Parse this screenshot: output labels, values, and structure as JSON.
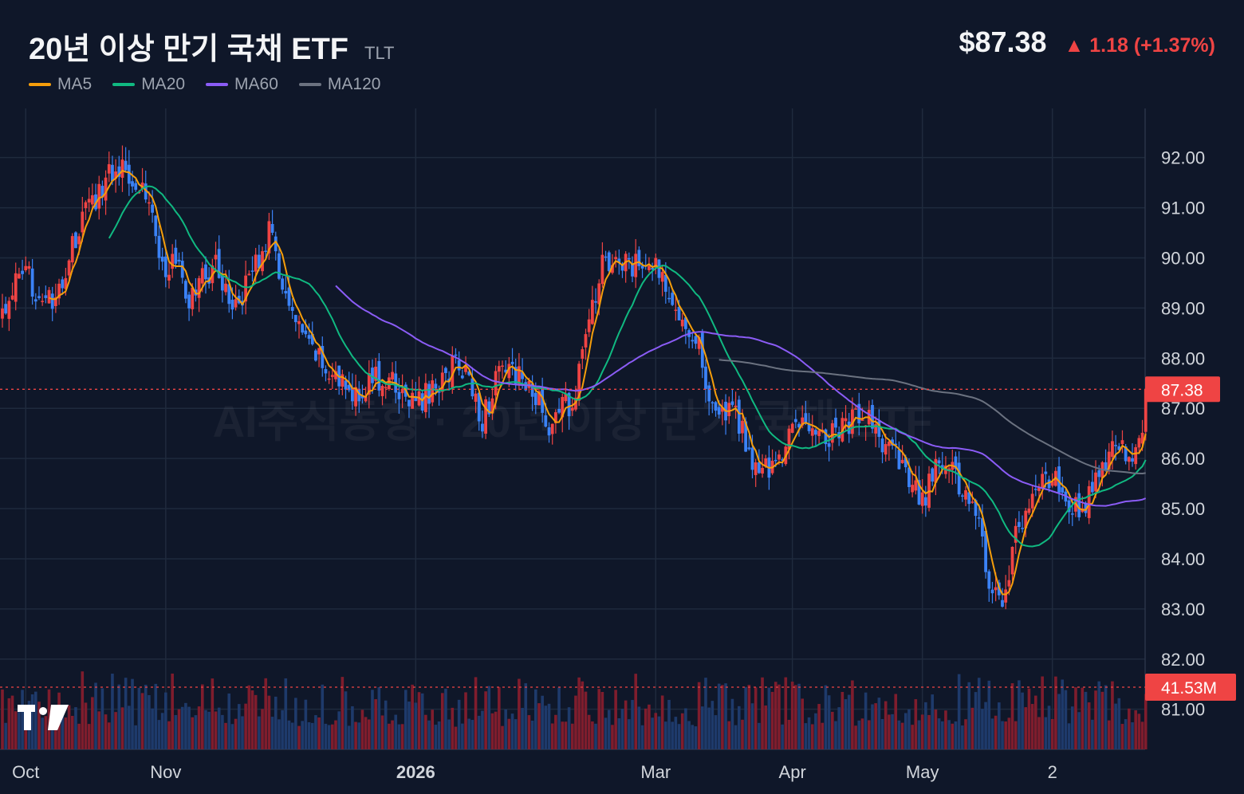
{
  "header": {
    "title": "20년 이상 만기 국채 ETF",
    "ticker": "TLT",
    "price": "$87.38",
    "change": "▲ 1.18 (+1.37%)"
  },
  "watermark": "AI주식동향 · 20년 이상 만기 국채 ETF",
  "colors": {
    "background": "#0f1729",
    "grid": "#1f2a3d",
    "up": "#ef4444",
    "down": "#3b82f6",
    "vol_up": "#7f1d2d",
    "vol_down": "#1e3a6b",
    "ma5": "#f59e0b",
    "ma20": "#10b981",
    "ma60": "#8b5cf6",
    "ma120": "#6b7280",
    "price_line": "#ef4444"
  },
  "chart_data": {
    "type": "candlestick",
    "y_axis": {
      "min": 80.2,
      "max": 92.98,
      "ticks": [
        81,
        82,
        83,
        84,
        85,
        86,
        87,
        88,
        89,
        90,
        91,
        92
      ],
      "tick_labels": [
        "81.00",
        "82.00",
        "83.00",
        "84.00",
        "85.00",
        "86.00",
        "87.00",
        "88.00",
        "89.00",
        "90.00",
        "91.00",
        "92.00"
      ]
    },
    "x_axis": {
      "labels": [
        {
          "text": "Oct",
          "bold": false,
          "index": 7
        },
        {
          "text": "Nov",
          "bold": false,
          "index": 49
        },
        {
          "text": "2026",
          "bold": true,
          "index": 124
        },
        {
          "text": "Mar",
          "bold": false,
          "index": 196
        },
        {
          "text": "Apr",
          "bold": false,
          "index": 237
        },
        {
          "text": "May",
          "bold": false,
          "index": 276
        },
        {
          "text": "2",
          "bold": false,
          "index": 315
        }
      ]
    },
    "current_price": 87.38,
    "current_price_label": "87.38",
    "current_volume_label": "41.53M",
    "legend": [
      {
        "name": "MA5",
        "color": "#f59e0b"
      },
      {
        "name": "MA20",
        "color": "#10b981"
      },
      {
        "name": "MA60",
        "color": "#8b5cf6"
      },
      {
        "name": "MA120",
        "color": "#6b7280"
      }
    ],
    "anchors": [
      [
        0,
        88.9
      ],
      [
        4,
        89.5
      ],
      [
        8,
        89.6
      ],
      [
        12,
        89.2
      ],
      [
        16,
        89.0
      ],
      [
        20,
        90.0
      ],
      [
        24,
        90.8
      ],
      [
        28,
        91.2
      ],
      [
        32,
        91.7
      ],
      [
        36,
        91.85
      ],
      [
        40,
        91.6
      ],
      [
        44,
        91.2
      ],
      [
        48,
        89.8
      ],
      [
        52,
        89.9
      ],
      [
        56,
        89.1
      ],
      [
        60,
        89.6
      ],
      [
        64,
        89.9
      ],
      [
        68,
        89.1
      ],
      [
        72,
        89.3
      ],
      [
        76,
        89.9
      ],
      [
        80,
        90.5
      ],
      [
        84,
        89.5
      ],
      [
        88,
        88.6
      ],
      [
        92,
        88.2
      ],
      [
        96,
        87.9
      ],
      [
        100,
        87.6
      ],
      [
        104,
        87.3
      ],
      [
        108,
        87.4
      ],
      [
        112,
        87.6
      ],
      [
        116,
        87.5
      ],
      [
        120,
        87.3
      ],
      [
        124,
        87.1
      ],
      [
        128,
        87.3
      ],
      [
        132,
        87.6
      ],
      [
        136,
        87.9
      ],
      [
        140,
        87.6
      ],
      [
        144,
        86.8
      ],
      [
        148,
        87.5
      ],
      [
        152,
        87.9
      ],
      [
        156,
        87.5
      ],
      [
        160,
        87.2
      ],
      [
        164,
        86.7
      ],
      [
        168,
        87.0
      ],
      [
        172,
        87.2
      ],
      [
        176,
        88.9
      ],
      [
        180,
        89.8
      ],
      [
        184,
        89.9
      ],
      [
        188,
        89.8
      ],
      [
        192,
        89.9
      ],
      [
        196,
        89.8
      ],
      [
        200,
        89.4
      ],
      [
        204,
        88.8
      ],
      [
        208,
        88.5
      ],
      [
        212,
        87.3
      ],
      [
        216,
        86.8
      ],
      [
        220,
        86.9
      ],
      [
        224,
        86.1
      ],
      [
        228,
        85.7
      ],
      [
        232,
        85.9
      ],
      [
        236,
        86.5
      ],
      [
        240,
        86.6
      ],
      [
        244,
        86.7
      ],
      [
        248,
        86.5
      ],
      [
        252,
        86.6
      ],
      [
        256,
        86.8
      ],
      [
        260,
        86.7
      ],
      [
        264,
        86.3
      ],
      [
        268,
        86.0
      ],
      [
        272,
        85.5
      ],
      [
        276,
        85.1
      ],
      [
        280,
        85.8
      ],
      [
        284,
        85.9
      ],
      [
        288,
        85.4
      ],
      [
        292,
        84.9
      ],
      [
        296,
        83.6
      ],
      [
        300,
        83.1
      ],
      [
        304,
        84.5
      ],
      [
        308,
        85.0
      ],
      [
        312,
        85.6
      ],
      [
        316,
        85.5
      ],
      [
        320,
        85.2
      ],
      [
        324,
        84.9
      ],
      [
        328,
        85.5
      ],
      [
        332,
        86.1
      ],
      [
        336,
        86.1
      ],
      [
        340,
        86.2
      ],
      [
        342,
        86.3
      ],
      [
        343,
        87.38
      ]
    ],
    "ma_lines": [
      {
        "name": "MA5",
        "window": 5,
        "start": 14
      },
      {
        "name": "MA20",
        "window": 20,
        "start": 32
      },
      {
        "name": "MA60",
        "window": 60,
        "start": 100
      },
      {
        "name": "MA120",
        "window": 120,
        "start": 215
      }
    ]
  }
}
